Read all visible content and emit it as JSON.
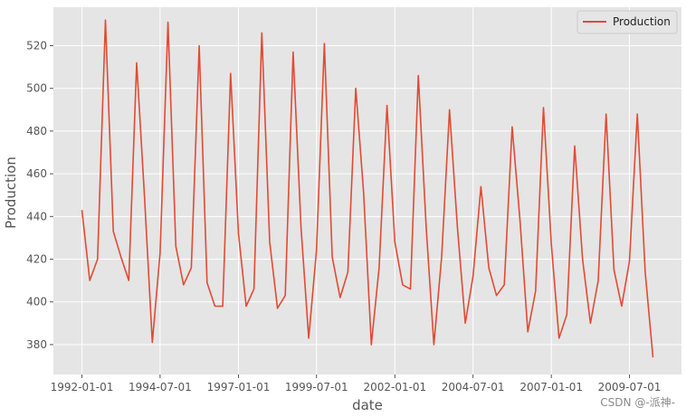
{
  "chart_data": {
    "type": "line",
    "title": "",
    "xlabel": "date",
    "ylabel": "Production",
    "x_tick_labels": [
      "1992-01-01",
      "1994-07-01",
      "1997-01-01",
      "1999-07-01",
      "2002-01-01",
      "2004-07-01",
      "2007-01-01",
      "2009-07-01"
    ],
    "y_tick_labels": [
      "380",
      "400",
      "420",
      "440",
      "460",
      "480",
      "500",
      "520"
    ],
    "ylim": [
      366,
      538
    ],
    "grid": true,
    "legend_position": "top-right",
    "series": [
      {
        "name": "Production",
        "color": "#e24a33",
        "points": [
          [
            "1992-01-01",
            443
          ],
          [
            "1992-04-01",
            410
          ],
          [
            "1992-07-01",
            420
          ],
          [
            "1992-10-01",
            532
          ],
          [
            "1993-01-01",
            433
          ],
          [
            "1993-04-01",
            421
          ],
          [
            "1993-07-01",
            410
          ],
          [
            "1993-10-01",
            512
          ],
          [
            "1994-01-01",
            449
          ],
          [
            "1994-04-01",
            381
          ],
          [
            "1994-07-01",
            423
          ],
          [
            "1994-10-01",
            531
          ],
          [
            "1995-01-01",
            426
          ],
          [
            "1995-04-01",
            408
          ],
          [
            "1995-07-01",
            416
          ],
          [
            "1995-10-01",
            520
          ],
          [
            "1996-01-01",
            409
          ],
          [
            "1996-04-01",
            398
          ],
          [
            "1996-07-01",
            398
          ],
          [
            "1996-10-01",
            507
          ],
          [
            "1997-01-01",
            432
          ],
          [
            "1997-04-01",
            398
          ],
          [
            "1997-07-01",
            406
          ],
          [
            "1997-10-01",
            526
          ],
          [
            "1998-01-01",
            428
          ],
          [
            "1998-04-01",
            397
          ],
          [
            "1998-07-01",
            403
          ],
          [
            "1998-10-01",
            517
          ],
          [
            "1999-01-01",
            435
          ],
          [
            "1999-04-01",
            383
          ],
          [
            "1999-07-01",
            424
          ],
          [
            "1999-10-01",
            521
          ],
          [
            "2000-01-01",
            421
          ],
          [
            "2000-04-01",
            402
          ],
          [
            "2000-07-01",
            414
          ],
          [
            "2000-10-01",
            500
          ],
          [
            "2001-01-01",
            451
          ],
          [
            "2001-04-01",
            380
          ],
          [
            "2001-07-01",
            416
          ],
          [
            "2001-10-01",
            492
          ],
          [
            "2002-01-01",
            428
          ],
          [
            "2002-04-01",
            408
          ],
          [
            "2002-07-01",
            406
          ],
          [
            "2002-10-01",
            506
          ],
          [
            "2003-01-01",
            435
          ],
          [
            "2003-04-01",
            380
          ],
          [
            "2003-07-01",
            421
          ],
          [
            "2003-10-01",
            490
          ],
          [
            "2004-01-01",
            435
          ],
          [
            "2004-04-01",
            390
          ],
          [
            "2004-07-01",
            412
          ],
          [
            "2004-10-01",
            454
          ],
          [
            "2005-01-01",
            416
          ],
          [
            "2005-04-01",
            403
          ],
          [
            "2005-07-01",
            408
          ],
          [
            "2005-10-01",
            482
          ],
          [
            "2006-01-01",
            438
          ],
          [
            "2006-04-01",
            386
          ],
          [
            "2006-07-01",
            405
          ],
          [
            "2006-10-01",
            491
          ],
          [
            "2007-01-01",
            427
          ],
          [
            "2007-04-01",
            383
          ],
          [
            "2007-07-01",
            394
          ],
          [
            "2007-10-01",
            473
          ],
          [
            "2008-01-01",
            420
          ],
          [
            "2008-04-01",
            390
          ],
          [
            "2008-07-01",
            410
          ],
          [
            "2008-10-01",
            488
          ],
          [
            "2009-01-01",
            415
          ],
          [
            "2009-04-01",
            398
          ],
          [
            "2009-07-01",
            419
          ],
          [
            "2009-10-01",
            488
          ],
          [
            "2010-01-01",
            414
          ],
          [
            "2010-04-01",
            374
          ]
        ]
      }
    ]
  },
  "watermark": "CSDN @-派神-"
}
